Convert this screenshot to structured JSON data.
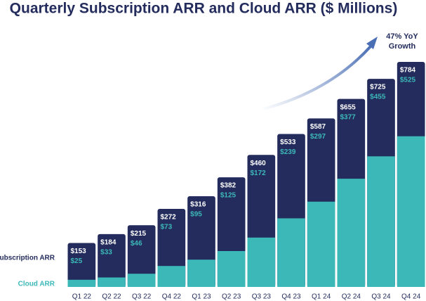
{
  "chart_data": {
    "type": "bar",
    "title": "Quarterly Subscription ARR and Cloud ARR ($ Millions)",
    "annotation": [
      "47% YoY",
      "Growth"
    ],
    "categories": [
      "Q1 22",
      "Q2 22",
      "Q3 22",
      "Q4 22",
      "Q1 23",
      "Q2 23",
      "Q3 23",
      "Q4 23",
      "Q1 24",
      "Q2 24",
      "Q3 24",
      "Q4 24"
    ],
    "series": [
      {
        "name": "Subscription ARR",
        "color": "#232c5c",
        "label_color": "#ffffff",
        "values": [
          153,
          184,
          215,
          272,
          316,
          382,
          460,
          533,
          587,
          655,
          725,
          784
        ],
        "value_labels": [
          "$153",
          "$184",
          "$215",
          "$272",
          "$316",
          "$382",
          "$460",
          "$533",
          "$587",
          "$655",
          "$725",
          "$784"
        ]
      },
      {
        "name": "Cloud ARR",
        "color": "#3db8b8",
        "label_color": "#3db8b8",
        "values": [
          25,
          33,
          46,
          73,
          95,
          125,
          172,
          239,
          297,
          377,
          455,
          525
        ],
        "value_labels": [
          "$25",
          "$33",
          "$46",
          "$73",
          "$95",
          "$125",
          "$172",
          "$239",
          "$297",
          "$377",
          "$455",
          "$525"
        ]
      }
    ]
  }
}
